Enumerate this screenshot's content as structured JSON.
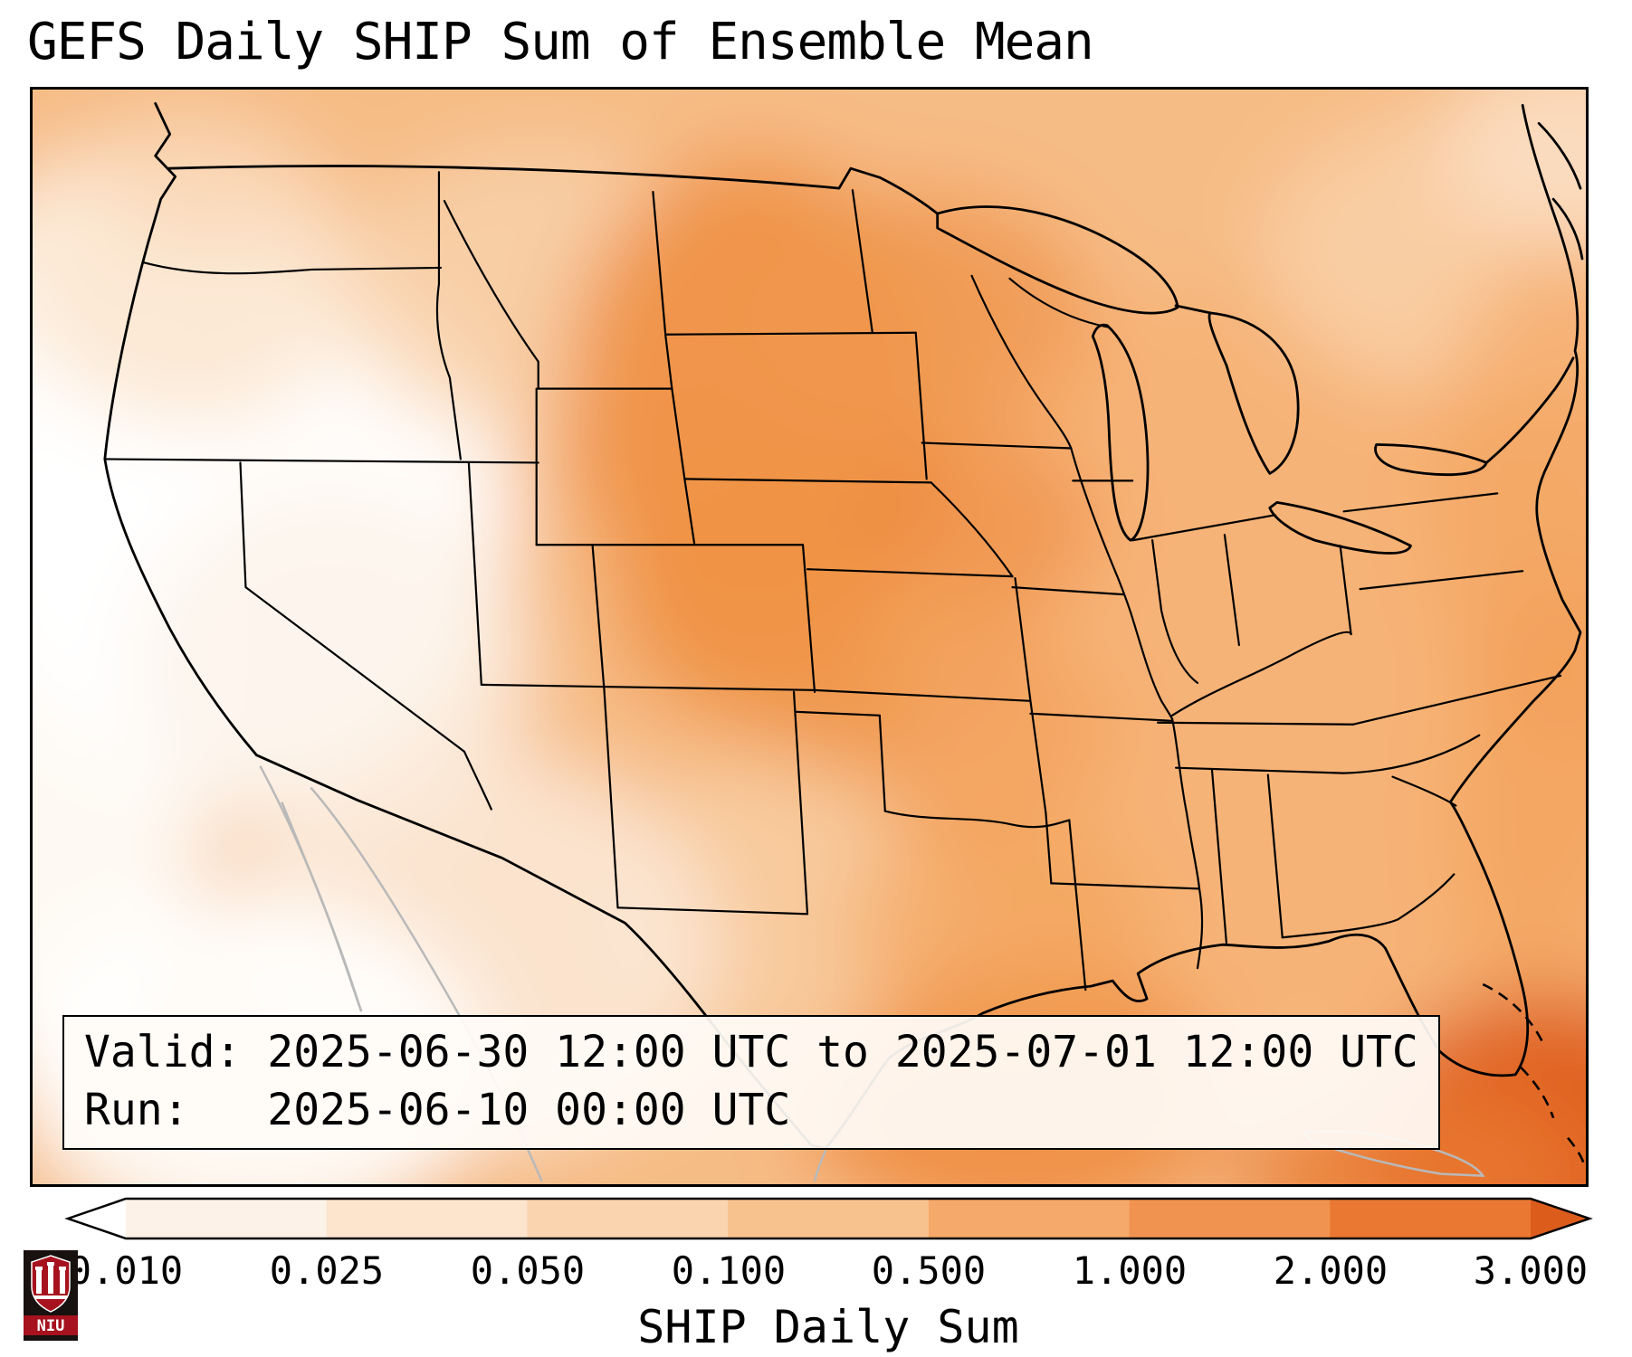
{
  "figure": {
    "title": "GEFS Daily SHIP Sum of Ensemble Mean"
  },
  "map": {
    "info_box": {
      "line1": "Valid: 2025-06-30 12:00 UTC to 2025-07-01 12:00 UTC",
      "line2": "Run:   2025-06-10 00:00 UTC"
    }
  },
  "colorbar": {
    "label": "SHIP Daily Sum",
    "tick_labels": [
      "0.010",
      "0.025",
      "0.050",
      "0.100",
      "0.500",
      "1.000",
      "2.000",
      "3.000"
    ],
    "levels": [
      0.01,
      0.025,
      0.05,
      0.1,
      0.5,
      1.0,
      2.0,
      3.0
    ],
    "segment_colors": [
      "#fdf2e7",
      "#fce4cd",
      "#fad4ae",
      "#f8c28e",
      "#f5a96a",
      "#f19350",
      "#ea7832"
    ],
    "under_color": "#ffffff",
    "over_color": "#dc5c1c",
    "extend": "both"
  },
  "logo": {
    "text": "NIU",
    "shield_color": "#a6121e",
    "band_color": "#a6121e",
    "bg_color": "#17110f"
  },
  "chart_data": {
    "type": "heatmap",
    "title": "GEFS Daily SHIP Sum of Ensemble Mean",
    "parameter": "SHIP Daily Sum",
    "model": "GEFS",
    "statistic": "Daily sum of ensemble mean SHIP",
    "valid_start": "2025-06-30 12:00 UTC",
    "valid_end": "2025-07-01 12:00 UTC",
    "run": "2025-06-10 00:00 UTC",
    "region": "Continental United States and adjacent waters",
    "colorbar_levels": [
      0.01,
      0.025,
      0.05,
      0.1,
      0.5,
      1.0,
      2.0,
      3.0
    ],
    "colorbar_extend": "both",
    "legend_position": "bottom horizontal",
    "qualitative_field": [
      {
        "area": "California / Nevada / Great Basin and Pacific coast",
        "value": "< 0.01"
      },
      {
        "area": "Northern and Central Plains (ND, SD, MN, NE, KS)",
        "value": "0.5 - 1.0"
      },
      {
        "area": "Iowa / eastern Nebraska local maximum",
        "value": "~1.0"
      },
      {
        "area": "Oklahoma / Texas Panhandle",
        "value": "0.5 - 1.0"
      },
      {
        "area": "Midwest, Ohio Valley and Southeast US",
        "value": "0.1 - 0.5"
      },
      {
        "area": "Interior West (MT, WY, UT, AZ)",
        "value": "0.025 - 0.1"
      },
      {
        "area": "Northeast US / New England",
        "value": "0.025 - 0.1"
      },
      {
        "area": "Western Gulf of Mexico off Texas coast",
        "value": "0.5 - 1.0"
      },
      {
        "area": "Far lower-right corner of domain (SW Atlantic/Caribbean)",
        "value": "2.0 - 3.0+"
      },
      {
        "area": "Northwest Mexico / lower-left corner",
        "value": "< 0.025"
      }
    ]
  }
}
